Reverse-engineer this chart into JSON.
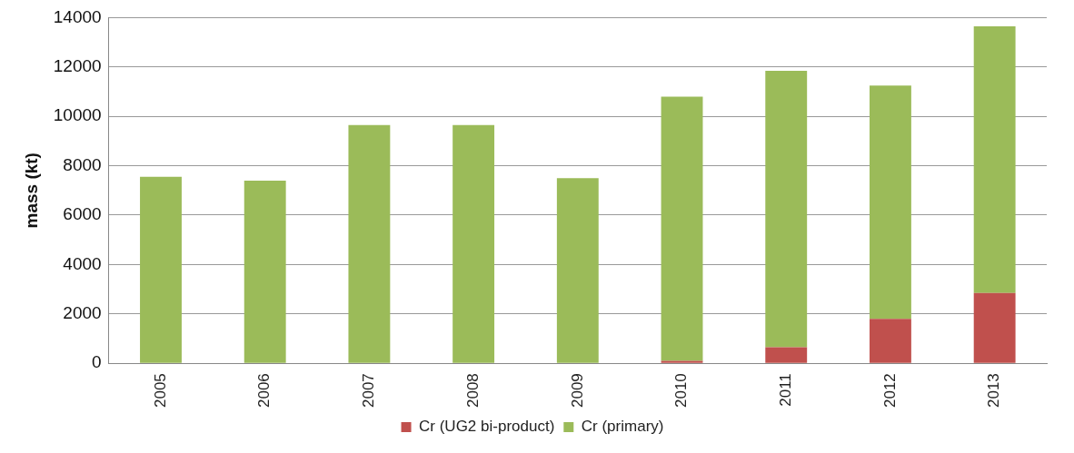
{
  "chart_data": {
    "type": "bar",
    "stacked": true,
    "ylabel": "mass (kt)",
    "categories": [
      "2005",
      "2006",
      "2007",
      "2008",
      "2009",
      "2010",
      "2011",
      "2012",
      "2013"
    ],
    "series": [
      {
        "name": "Cr (UG2 bi-product)",
        "color": "#c0504d",
        "values": [
          0,
          0,
          0,
          0,
          0,
          100,
          650,
          1800,
          2850
        ]
      },
      {
        "name": "Cr (primary)",
        "color": "#9bbb59",
        "values": [
          7550,
          7400,
          9650,
          9650,
          7500,
          10700,
          11200,
          9450,
          10800
        ]
      }
    ],
    "ylim": [
      0,
      14000
    ],
    "yticks": [
      0,
      2000,
      4000,
      6000,
      8000,
      10000,
      12000,
      14000
    ],
    "grid": "y",
    "legend": "bottom"
  }
}
